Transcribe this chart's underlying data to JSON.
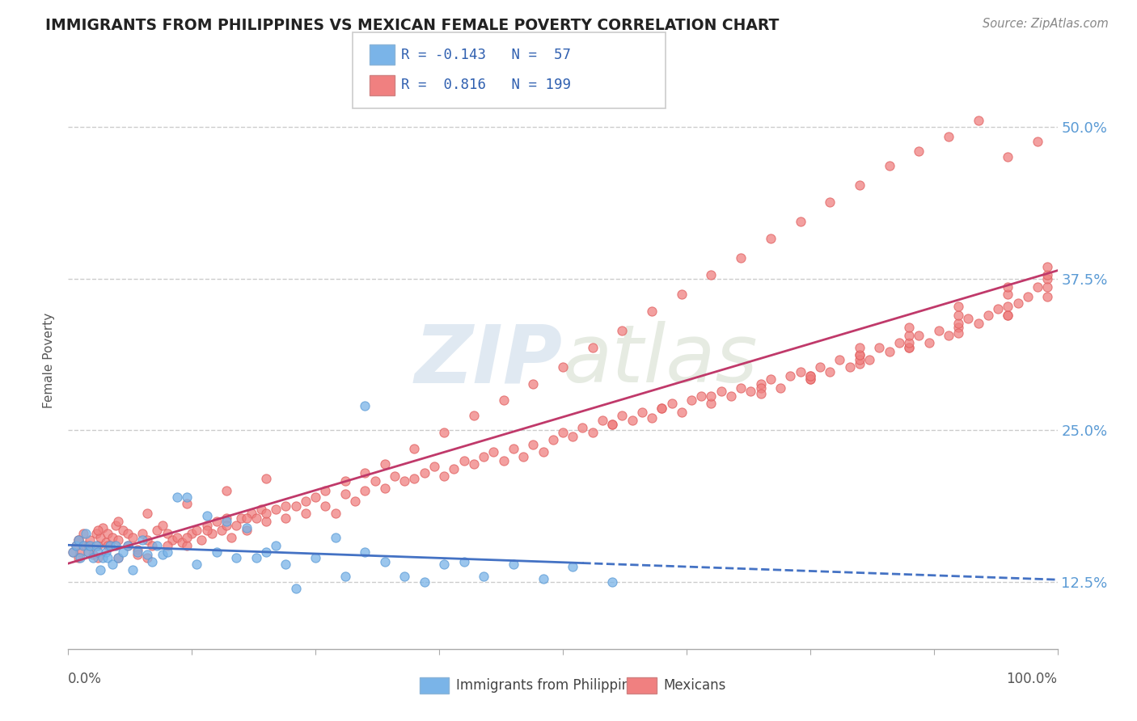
{
  "title": "IMMIGRANTS FROM PHILIPPINES VS MEXICAN FEMALE POVERTY CORRELATION CHART",
  "source_text": "Source: ZipAtlas.com",
  "ylabel": "Female Poverty",
  "y_tick_labels": [
    "12.5%",
    "25.0%",
    "37.5%",
    "50.0%"
  ],
  "y_tick_values": [
    0.125,
    0.25,
    0.375,
    0.5
  ],
  "xlim": [
    0.0,
    1.0
  ],
  "ylim": [
    0.07,
    0.545
  ],
  "color_philippines": "#7ab4e8",
  "color_mexicans": "#f08080",
  "color_line_philippines": "#4472c4",
  "color_line_mexicans": "#c0396a",
  "watermark_zip": "ZIP",
  "watermark_atlas": "atlas",
  "background_color": "#ffffff",
  "grid_color": "#cccccc",
  "philippines_x": [
    0.005,
    0.008,
    0.01,
    0.012,
    0.015,
    0.018,
    0.02,
    0.022,
    0.025,
    0.028,
    0.03,
    0.032,
    0.035,
    0.038,
    0.04,
    0.042,
    0.045,
    0.048,
    0.05,
    0.055,
    0.06,
    0.065,
    0.07,
    0.075,
    0.08,
    0.085,
    0.09,
    0.095,
    0.1,
    0.11,
    0.12,
    0.13,
    0.14,
    0.15,
    0.16,
    0.17,
    0.18,
    0.19,
    0.2,
    0.21,
    0.22,
    0.23,
    0.25,
    0.27,
    0.28,
    0.3,
    0.32,
    0.34,
    0.36,
    0.38,
    0.4,
    0.42,
    0.45,
    0.48,
    0.51,
    0.55,
    0.3
  ],
  "philippines_y": [
    0.15,
    0.155,
    0.16,
    0.145,
    0.155,
    0.165,
    0.15,
    0.155,
    0.145,
    0.155,
    0.15,
    0.135,
    0.145,
    0.15,
    0.145,
    0.155,
    0.14,
    0.155,
    0.145,
    0.15,
    0.155,
    0.135,
    0.15,
    0.16,
    0.148,
    0.142,
    0.155,
    0.148,
    0.15,
    0.195,
    0.195,
    0.14,
    0.18,
    0.15,
    0.175,
    0.145,
    0.17,
    0.145,
    0.15,
    0.155,
    0.14,
    0.12,
    0.145,
    0.162,
    0.13,
    0.15,
    0.142,
    0.13,
    0.125,
    0.14,
    0.142,
    0.13,
    0.14,
    0.128,
    0.138,
    0.125,
    0.27
  ],
  "mexicans_x": [
    0.005,
    0.008,
    0.01,
    0.012,
    0.015,
    0.018,
    0.02,
    0.022,
    0.025,
    0.028,
    0.03,
    0.032,
    0.035,
    0.038,
    0.04,
    0.042,
    0.045,
    0.048,
    0.05,
    0.055,
    0.06,
    0.065,
    0.07,
    0.075,
    0.08,
    0.085,
    0.09,
    0.095,
    0.1,
    0.105,
    0.11,
    0.115,
    0.12,
    0.125,
    0.13,
    0.135,
    0.14,
    0.145,
    0.15,
    0.155,
    0.16,
    0.165,
    0.17,
    0.175,
    0.18,
    0.185,
    0.19,
    0.195,
    0.2,
    0.21,
    0.22,
    0.23,
    0.24,
    0.25,
    0.26,
    0.27,
    0.28,
    0.29,
    0.3,
    0.31,
    0.32,
    0.33,
    0.34,
    0.35,
    0.36,
    0.37,
    0.38,
    0.39,
    0.4,
    0.41,
    0.42,
    0.43,
    0.44,
    0.45,
    0.46,
    0.47,
    0.48,
    0.49,
    0.5,
    0.51,
    0.52,
    0.53,
    0.54,
    0.55,
    0.56,
    0.57,
    0.58,
    0.59,
    0.6,
    0.61,
    0.62,
    0.63,
    0.64,
    0.65,
    0.66,
    0.67,
    0.68,
    0.69,
    0.7,
    0.71,
    0.72,
    0.73,
    0.74,
    0.75,
    0.76,
    0.77,
    0.78,
    0.79,
    0.8,
    0.81,
    0.82,
    0.83,
    0.84,
    0.85,
    0.86,
    0.87,
    0.88,
    0.89,
    0.9,
    0.91,
    0.92,
    0.93,
    0.94,
    0.95,
    0.96,
    0.97,
    0.98,
    0.99,
    0.01,
    0.02,
    0.03,
    0.04,
    0.05,
    0.06,
    0.07,
    0.08,
    0.1,
    0.12,
    0.14,
    0.16,
    0.18,
    0.2,
    0.22,
    0.24,
    0.26,
    0.28,
    0.3,
    0.32,
    0.35,
    0.38,
    0.41,
    0.44,
    0.47,
    0.5,
    0.53,
    0.56,
    0.59,
    0.62,
    0.65,
    0.68,
    0.71,
    0.74,
    0.77,
    0.8,
    0.83,
    0.86,
    0.89,
    0.92,
    0.95,
    0.98,
    0.55,
    0.6,
    0.65,
    0.7,
    0.75,
    0.8,
    0.85,
    0.9,
    0.95,
    0.99,
    0.7,
    0.75,
    0.8,
    0.85,
    0.9,
    0.95,
    0.99,
    0.75,
    0.8,
    0.85,
    0.9,
    0.95,
    0.99,
    0.8,
    0.85,
    0.9,
    0.95,
    0.99,
    0.01,
    0.03,
    0.05,
    0.08,
    0.12,
    0.16,
    0.2
  ],
  "mexicans_y": [
    0.15,
    0.155,
    0.16,
    0.15,
    0.165,
    0.155,
    0.155,
    0.16,
    0.148,
    0.165,
    0.155,
    0.162,
    0.17,
    0.158,
    0.165,
    0.155,
    0.162,
    0.172,
    0.16,
    0.168,
    0.165,
    0.162,
    0.152,
    0.165,
    0.16,
    0.155,
    0.168,
    0.172,
    0.165,
    0.16,
    0.162,
    0.158,
    0.155,
    0.165,
    0.168,
    0.16,
    0.172,
    0.165,
    0.175,
    0.168,
    0.178,
    0.162,
    0.172,
    0.178,
    0.168,
    0.182,
    0.178,
    0.185,
    0.175,
    0.185,
    0.178,
    0.188,
    0.182,
    0.195,
    0.188,
    0.182,
    0.198,
    0.192,
    0.2,
    0.208,
    0.202,
    0.212,
    0.208,
    0.21,
    0.215,
    0.22,
    0.212,
    0.218,
    0.225,
    0.222,
    0.228,
    0.232,
    0.225,
    0.235,
    0.228,
    0.238,
    0.232,
    0.242,
    0.248,
    0.245,
    0.252,
    0.248,
    0.258,
    0.255,
    0.262,
    0.258,
    0.265,
    0.26,
    0.268,
    0.272,
    0.265,
    0.275,
    0.278,
    0.272,
    0.282,
    0.278,
    0.285,
    0.282,
    0.288,
    0.292,
    0.285,
    0.295,
    0.298,
    0.292,
    0.302,
    0.298,
    0.308,
    0.302,
    0.312,
    0.308,
    0.318,
    0.315,
    0.322,
    0.318,
    0.328,
    0.322,
    0.332,
    0.328,
    0.335,
    0.342,
    0.338,
    0.345,
    0.35,
    0.345,
    0.355,
    0.36,
    0.368,
    0.375,
    0.145,
    0.15,
    0.145,
    0.155,
    0.145,
    0.155,
    0.148,
    0.145,
    0.155,
    0.162,
    0.168,
    0.172,
    0.178,
    0.182,
    0.188,
    0.192,
    0.2,
    0.208,
    0.215,
    0.222,
    0.235,
    0.248,
    0.262,
    0.275,
    0.288,
    0.302,
    0.318,
    0.332,
    0.348,
    0.362,
    0.378,
    0.392,
    0.408,
    0.422,
    0.438,
    0.452,
    0.468,
    0.48,
    0.492,
    0.505,
    0.475,
    0.488,
    0.255,
    0.268,
    0.278,
    0.285,
    0.295,
    0.305,
    0.318,
    0.33,
    0.345,
    0.36,
    0.28,
    0.292,
    0.308,
    0.322,
    0.338,
    0.352,
    0.368,
    0.295,
    0.312,
    0.328,
    0.345,
    0.362,
    0.378,
    0.318,
    0.335,
    0.352,
    0.368,
    0.385,
    0.16,
    0.168,
    0.175,
    0.182,
    0.19,
    0.2,
    0.21
  ]
}
